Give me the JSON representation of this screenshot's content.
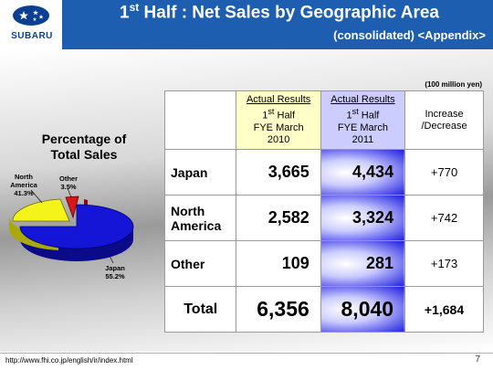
{
  "header": {
    "logo_word": "SUBARU",
    "title_main": "1",
    "title_sup": "st",
    "title_rest": " Half : Net Sales by Geographic Area",
    "subtitle": "(consolidated) <Appendix>"
  },
  "pie": {
    "title_line1": "Percentage of",
    "title_line2": "Total Sales",
    "slices": [
      {
        "name": "Japan",
        "line1": "Japan",
        "line2": "55.2%",
        "value": 55.2,
        "color": "#1515d8"
      },
      {
        "name": "North America",
        "line1": "North",
        "line2": "America",
        "line3": "41.3%",
        "value": 41.3,
        "color": "#f4f41a"
      },
      {
        "name": "Other",
        "line1": "Other",
        "line2": "3.5%",
        "value": 3.5,
        "color": "#d81818"
      }
    ]
  },
  "table": {
    "unit": "(100 million yen)",
    "col1": {
      "l1": "Actual Results",
      "l2a": "1",
      "l2sup": "st",
      "l2b": " Half",
      "l3": "FYE March",
      "l4": "2010"
    },
    "col2": {
      "l1": "Actual Results",
      "l2a": "1",
      "l2sup": "st",
      "l2b": " Half",
      "l3": "FYE March",
      "l4": "2011"
    },
    "col3": {
      "l1": "Increase",
      "l2": "/Decrease"
    },
    "rows": [
      {
        "label1": "Japan",
        "label2": "",
        "v2010": "3,665",
        "v2011": "4,434",
        "change": "+770"
      },
      {
        "label1": "North",
        "label2": "America",
        "v2010": "2,582",
        "v2011": "3,324",
        "change": "+742"
      },
      {
        "label1": "Other",
        "label2": "",
        "v2010": "109",
        "v2011": "281",
        "change": "+173"
      }
    ],
    "total": {
      "label": "Total",
      "v2010": "6,356",
      "v2011": "8,040",
      "change": "+1,684"
    }
  },
  "footer": {
    "url": "http://www.fhi.co.jp/english/ir/index.html",
    "page": "7"
  }
}
